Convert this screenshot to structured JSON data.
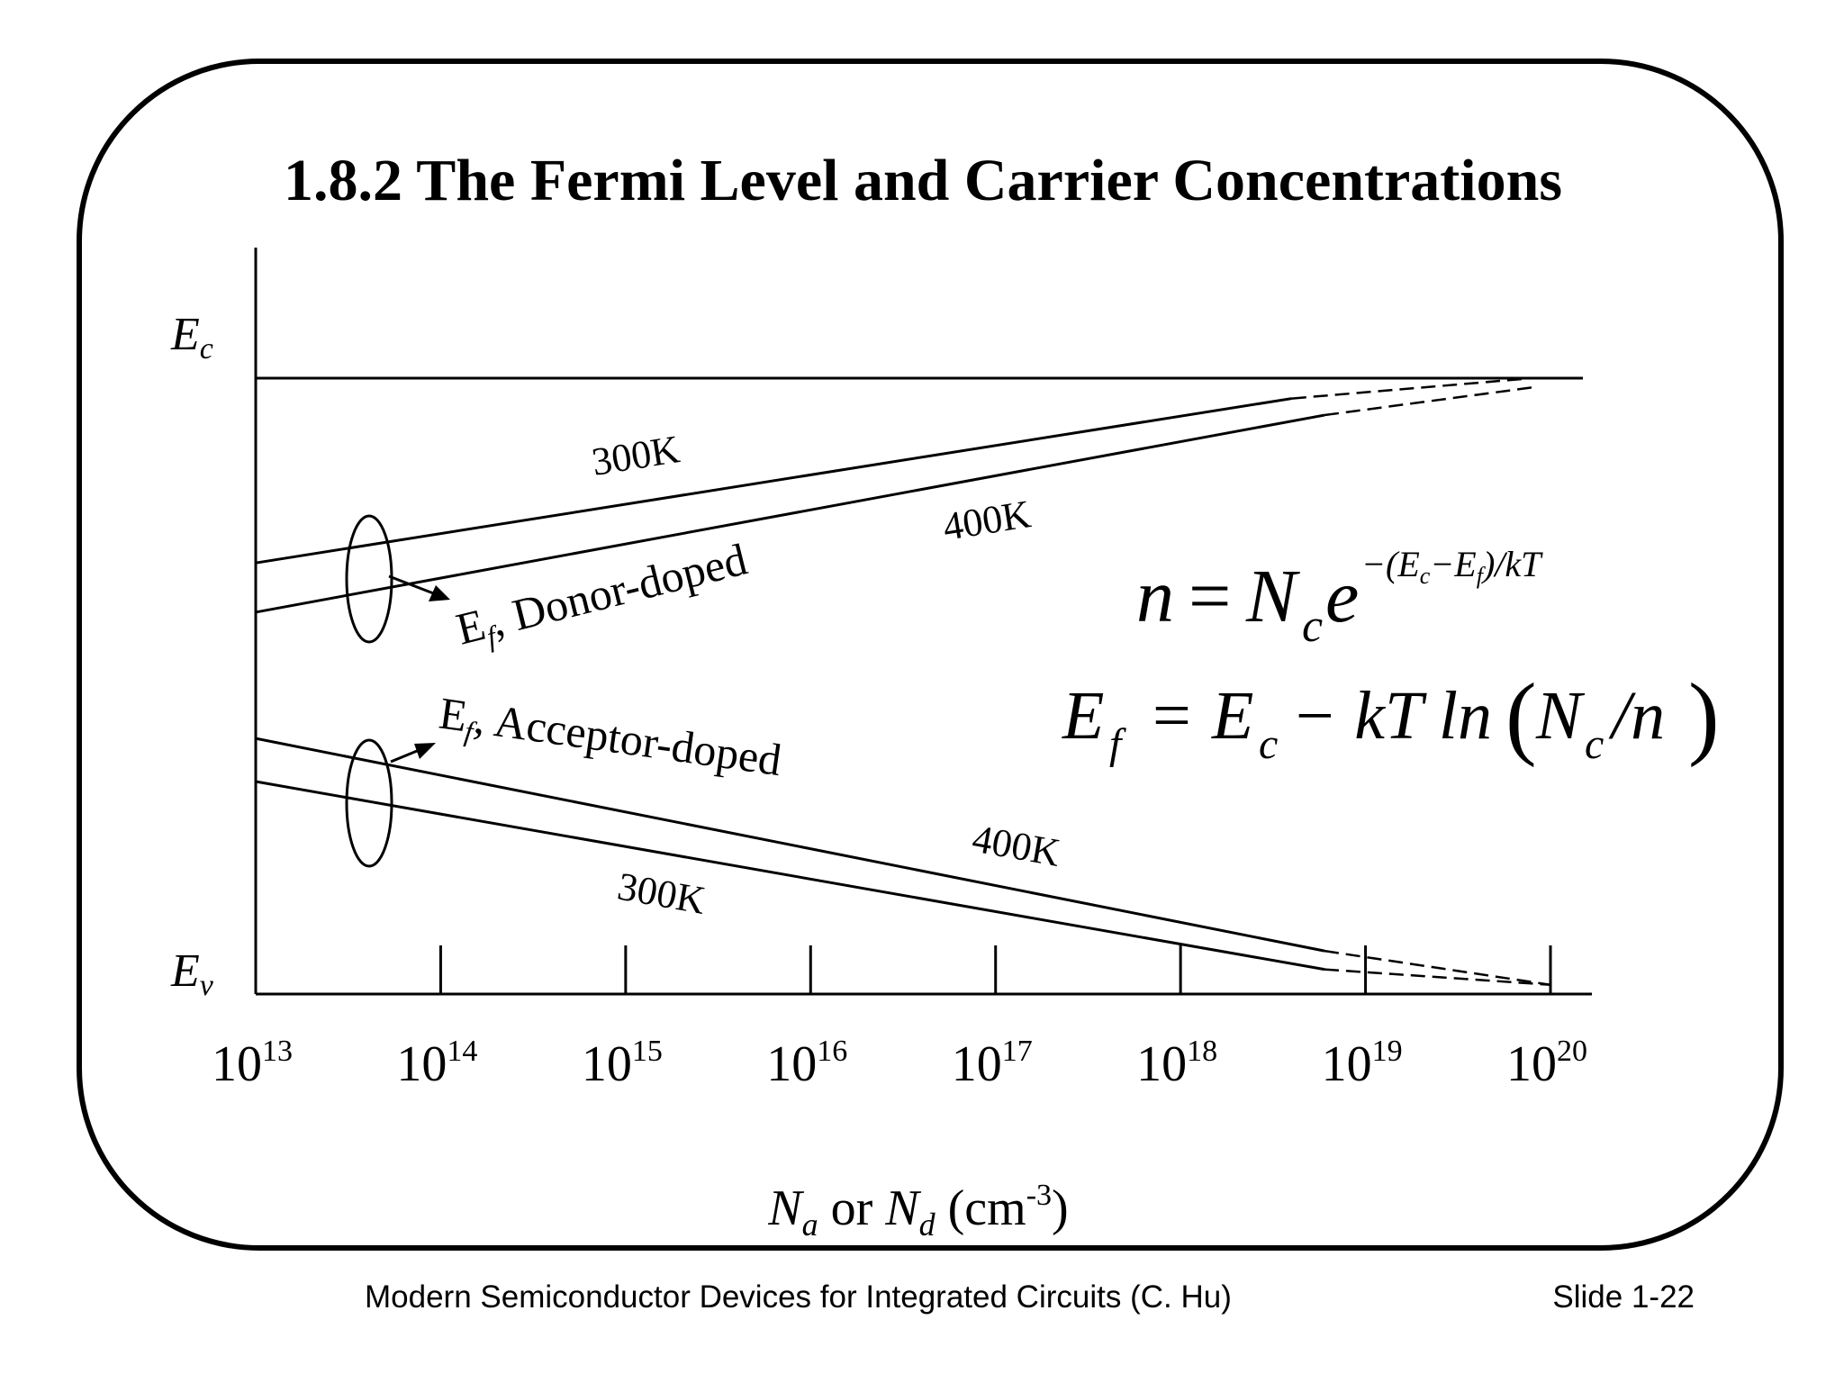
{
  "slide": {
    "title": "1.8.2  The Fermi Level and Carrier Concentrations",
    "footer_left": "Modern Semiconductor Devices for Integrated Circuits (C. Hu)",
    "footer_right": "Slide 1-22"
  },
  "equations": {
    "eq1": {
      "lhs": "n",
      "eq": "=",
      "n_base": "N",
      "n_sub": "c",
      "e": "e",
      "exponent": "−(E",
      "exp_sub_c": "c",
      "exp_mid": "−E",
      "exp_sub_f": "f",
      "exp_tail": ")/kT"
    },
    "eq2": {
      "lhs_base": "E",
      "lhs_sub": "f",
      "eq": "=",
      "ec_base": "E",
      "ec_sub": "c",
      "mid": "− kT ln",
      "lparen": "(",
      "nc_base": "N",
      "nc_sub": "c",
      "slash_n": "/n",
      "rparen": ")"
    }
  },
  "chart_data": {
    "type": "line",
    "x_scale": "log",
    "xlim": [
      10000000000000.0,
      1e+20
    ],
    "x_ticks": [
      10000000000000.0,
      100000000000000.0,
      1000000000000000.0,
      1e+16,
      1e+17,
      1e+18,
      1e+19,
      1e+20
    ],
    "x_tick_labels": [
      {
        "base": "10",
        "exp": "13"
      },
      {
        "base": "10",
        "exp": "14"
      },
      {
        "base": "10",
        "exp": "15"
      },
      {
        "base": "10",
        "exp": "16"
      },
      {
        "base": "10",
        "exp": "17"
      },
      {
        "base": "10",
        "exp": "18"
      },
      {
        "base": "10",
        "exp": "19"
      },
      {
        "base": "10",
        "exp": "20"
      }
    ],
    "xlabel": {
      "a": "N",
      "a_sub": "a",
      "or": " or ",
      "d": "N",
      "d_sub": "d",
      "unit": " (cm",
      "unit_sup": "-3",
      "unit_close": ")"
    },
    "y_levels": {
      "ec": {
        "base": "E",
        "sub": "c",
        "value": 1.0
      },
      "ev": {
        "base": "E",
        "sub": "v",
        "value": 0.0
      }
    },
    "ylim": [
      0,
      1
    ],
    "grid": false,
    "series": [
      {
        "name": "300K",
        "group": "donor",
        "x": [
          10000000000000.0,
          4e+18
        ],
        "y": [
          0.7,
          0.967
        ],
        "dashed_x": [
          4e+18,
          8e+19
        ],
        "dashed_y": [
          0.967,
          1.0
        ]
      },
      {
        "name": "400K",
        "group": "donor",
        "x": [
          10000000000000.0,
          6e+18
        ],
        "y": [
          0.62,
          0.94
        ],
        "dashed_x": [
          6e+18,
          8e+19
        ],
        "dashed_y": [
          0.94,
          0.985
        ]
      },
      {
        "name": "400K",
        "group": "acceptor",
        "x": [
          10000000000000.0,
          6e+18
        ],
        "y": [
          0.415,
          0.07
        ],
        "dashed_x": [
          6e+18,
          1e+20
        ],
        "dashed_y": [
          0.07,
          0.015
        ]
      },
      {
        "name": "300K",
        "group": "acceptor",
        "x": [
          10000000000000.0,
          6e+18
        ],
        "y": [
          0.345,
          0.04
        ],
        "dashed_x": [
          6e+18,
          1e+20
        ],
        "dashed_y": [
          0.04,
          0.015
        ]
      }
    ],
    "annotations": {
      "donor": {
        "e": "E",
        "sub": "f",
        "text": ", Donor-doped"
      },
      "acceptor": {
        "e": "E",
        "sub": "f",
        "text": ", Acceptor-doped"
      },
      "donor_300": "300K",
      "donor_400": "400K",
      "acceptor_400": "400K",
      "acceptor_300": "300K"
    }
  }
}
